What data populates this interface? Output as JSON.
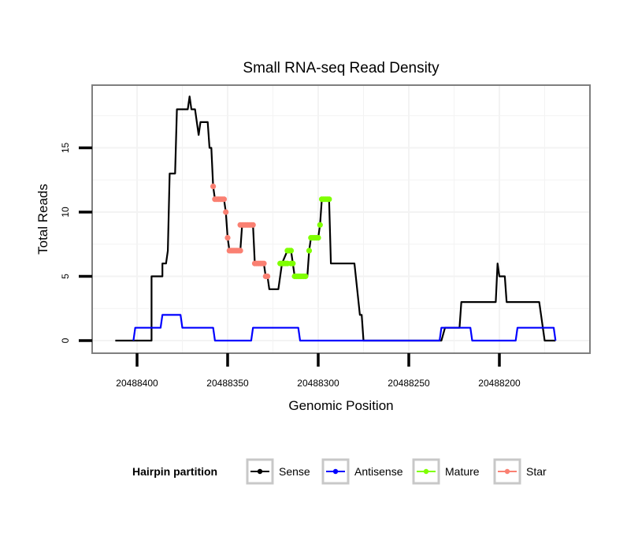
{
  "chart_data": {
    "type": "line",
    "title": "Small RNA-seq Read Density",
    "xlabel": "Genomic Position",
    "ylabel": "Total Reads",
    "x_reversed": true,
    "xlim": [
      20488425,
      20488150
    ],
    "ylim": [
      -1,
      19.5
    ],
    "x_ticks": [
      20488400,
      20488350,
      20488300,
      20488250,
      20488200
    ],
    "x_tick_labels": [
      "20488400",
      "20488350",
      "20488300",
      "20488250",
      "20488200"
    ],
    "y_ticks": [
      0,
      5,
      10,
      15
    ],
    "y_tick_labels": [
      "0",
      "5",
      "10",
      "15"
    ],
    "grid": true,
    "legend": {
      "title": "Hairpin partition",
      "placement": "bottom",
      "entries": [
        "Sense",
        "Antisense",
        "Mature",
        "Star"
      ]
    },
    "colors": {
      "Sense": "#000000",
      "Antisense": "#0000ff",
      "Mature": "#7fff00",
      "Star": "#fa8072"
    },
    "series": [
      {
        "name": "Sense",
        "points": [
          [
            20488412,
            0
          ],
          [
            20488392,
            0
          ],
          [
            20488392,
            5
          ],
          [
            20488386,
            5
          ],
          [
            20488386,
            6
          ],
          [
            20488384,
            6
          ],
          [
            20488383,
            7
          ],
          [
            20488382,
            13
          ],
          [
            20488379,
            13
          ],
          [
            20488378,
            18
          ],
          [
            20488372,
            18
          ],
          [
            20488371,
            19
          ],
          [
            20488370,
            18
          ],
          [
            20488368,
            18
          ],
          [
            20488366,
            16
          ],
          [
            20488365,
            17
          ],
          [
            20488361,
            17
          ],
          [
            20488360,
            15
          ],
          [
            20488359,
            15
          ],
          [
            20488358,
            12
          ],
          [
            20488357,
            11
          ],
          [
            20488352,
            11
          ],
          [
            20488351,
            10
          ],
          [
            20488350,
            8
          ],
          [
            20488349,
            7
          ],
          [
            20488343,
            7
          ],
          [
            20488342,
            9
          ],
          [
            20488336,
            9
          ],
          [
            20488335,
            6
          ],
          [
            20488330,
            6
          ],
          [
            20488329,
            5
          ],
          [
            20488328,
            5
          ],
          [
            20488327,
            4
          ],
          [
            20488322,
            4
          ],
          [
            20488320,
            6
          ],
          [
            20488317,
            7
          ],
          [
            20488315,
            7
          ],
          [
            20488314,
            6
          ],
          [
            20488313,
            5
          ],
          [
            20488306,
            5
          ],
          [
            20488305,
            7
          ],
          [
            20488304,
            8
          ],
          [
            20488300,
            8
          ],
          [
            20488299,
            9
          ],
          [
            20488298,
            11
          ],
          [
            20488294,
            11
          ],
          [
            20488293,
            6
          ],
          [
            20488280,
            6
          ],
          [
            20488277,
            2
          ],
          [
            20488276,
            2
          ],
          [
            20488275,
            0
          ],
          [
            20488232,
            0
          ],
          [
            20488230,
            1
          ],
          [
            20488222,
            1
          ],
          [
            20488221,
            3
          ],
          [
            20488202,
            3
          ],
          [
            20488201,
            6
          ],
          [
            20488200,
            5
          ],
          [
            20488197,
            5
          ],
          [
            20488196,
            3
          ],
          [
            20488178,
            3
          ],
          [
            20488177,
            2
          ],
          [
            20488175,
            0
          ],
          [
            20488169,
            0
          ]
        ]
      },
      {
        "name": "Antisense",
        "points": [
          [
            20488402,
            0
          ],
          [
            20488401,
            1
          ],
          [
            20488387,
            1
          ],
          [
            20488386,
            2
          ],
          [
            20488376,
            2
          ],
          [
            20488375,
            1
          ],
          [
            20488358,
            1
          ],
          [
            20488357,
            0
          ],
          [
            20488337,
            0
          ],
          [
            20488336,
            1
          ],
          [
            20488311,
            1
          ],
          [
            20488310,
            0
          ],
          [
            20488233,
            0
          ],
          [
            20488232,
            1
          ],
          [
            20488216,
            1
          ],
          [
            20488215,
            0
          ],
          [
            20488191,
            0
          ],
          [
            20488190,
            1
          ],
          [
            20488170,
            1
          ],
          [
            20488169,
            0
          ]
        ]
      },
      {
        "name": "Mature",
        "points": [
          [
            20488321,
            6
          ],
          [
            20488320,
            6
          ],
          [
            20488319,
            6
          ],
          [
            20488318,
            6
          ],
          [
            20488317,
            6
          ],
          [
            20488317,
            7
          ],
          [
            20488316,
            7
          ],
          [
            20488315,
            7
          ],
          [
            20488315,
            6
          ],
          [
            20488314,
            6
          ],
          [
            20488313,
            5
          ],
          [
            20488312,
            5
          ],
          [
            20488311,
            5
          ],
          [
            20488310,
            5
          ],
          [
            20488309,
            5
          ],
          [
            20488308,
            5
          ],
          [
            20488307,
            5
          ],
          [
            20488305,
            7
          ],
          [
            20488304,
            8
          ],
          [
            20488303,
            8
          ],
          [
            20488302,
            8
          ],
          [
            20488301,
            8
          ],
          [
            20488300,
            8
          ],
          [
            20488299,
            9
          ],
          [
            20488298,
            11
          ],
          [
            20488297,
            11
          ],
          [
            20488296,
            11
          ],
          [
            20488295,
            11
          ],
          [
            20488294,
            11
          ]
        ]
      },
      {
        "name": "Star",
        "points": [
          [
            20488358,
            12
          ],
          [
            20488357,
            11
          ],
          [
            20488356,
            11
          ],
          [
            20488355,
            11
          ],
          [
            20488354,
            11
          ],
          [
            20488353,
            11
          ],
          [
            20488352,
            11
          ],
          [
            20488351,
            10
          ],
          [
            20488350,
            8
          ],
          [
            20488349,
            7
          ],
          [
            20488348,
            7
          ],
          [
            20488347,
            7
          ],
          [
            20488346,
            7
          ],
          [
            20488345,
            7
          ],
          [
            20488344,
            7
          ],
          [
            20488343,
            7
          ],
          [
            20488343,
            9
          ],
          [
            20488342,
            9
          ],
          [
            20488341,
            9
          ],
          [
            20488340,
            9
          ],
          [
            20488339,
            9
          ],
          [
            20488338,
            9
          ],
          [
            20488337,
            9
          ],
          [
            20488336,
            9
          ],
          [
            20488335,
            6
          ],
          [
            20488334,
            6
          ],
          [
            20488333,
            6
          ],
          [
            20488332,
            6
          ],
          [
            20488331,
            6
          ],
          [
            20488330,
            6
          ],
          [
            20488329,
            5
          ],
          [
            20488328,
            5
          ]
        ]
      }
    ]
  }
}
